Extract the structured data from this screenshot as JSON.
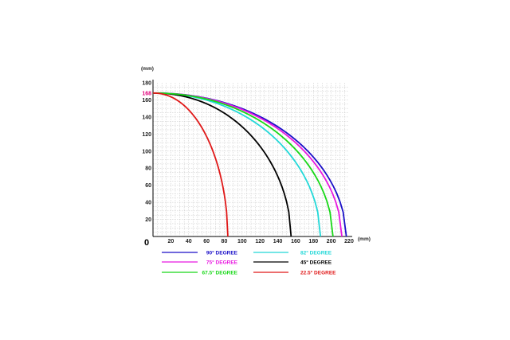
{
  "chart_data": {
    "type": "line",
    "x_unit": "(mm)",
    "y_unit": "(mm)",
    "origin_label": "0",
    "xlim": [
      0,
      220
    ],
    "ylim": [
      0,
      180
    ],
    "x_ticks": [
      "20",
      "40",
      "60",
      "80",
      "100",
      "120",
      "140",
      "160",
      "180",
      "200",
      "220"
    ],
    "y_ticks": [
      "20",
      "40",
      "60",
      "80",
      "100",
      "120",
      "140",
      "160",
      "180"
    ],
    "y_highlight_tick": {
      "value": 168,
      "label": "168",
      "color": "#e0007a"
    },
    "grid": true,
    "legend_placement": "bottom",
    "series": [
      {
        "name": "90° DEGREE",
        "color": "#1a0fc8",
        "start_y": 168,
        "end_x": 217
      },
      {
        "name": "82° DEGREE",
        "color": "#22d8d8",
        "start_y": 168,
        "end_x": 188
      },
      {
        "name": "75° DEGREE",
        "color": "#e818e0",
        "start_y": 168,
        "end_x": 212
      },
      {
        "name": "45° DEGREE",
        "color": "#000000",
        "start_y": 168,
        "end_x": 155
      },
      {
        "name": "67.5° DEGREE",
        "color": "#18d818",
        "start_y": 168,
        "end_x": 202
      },
      {
        "name": "22.5° DEGREE",
        "color": "#e01818",
        "start_y": 168,
        "end_x": 84
      }
    ]
  }
}
